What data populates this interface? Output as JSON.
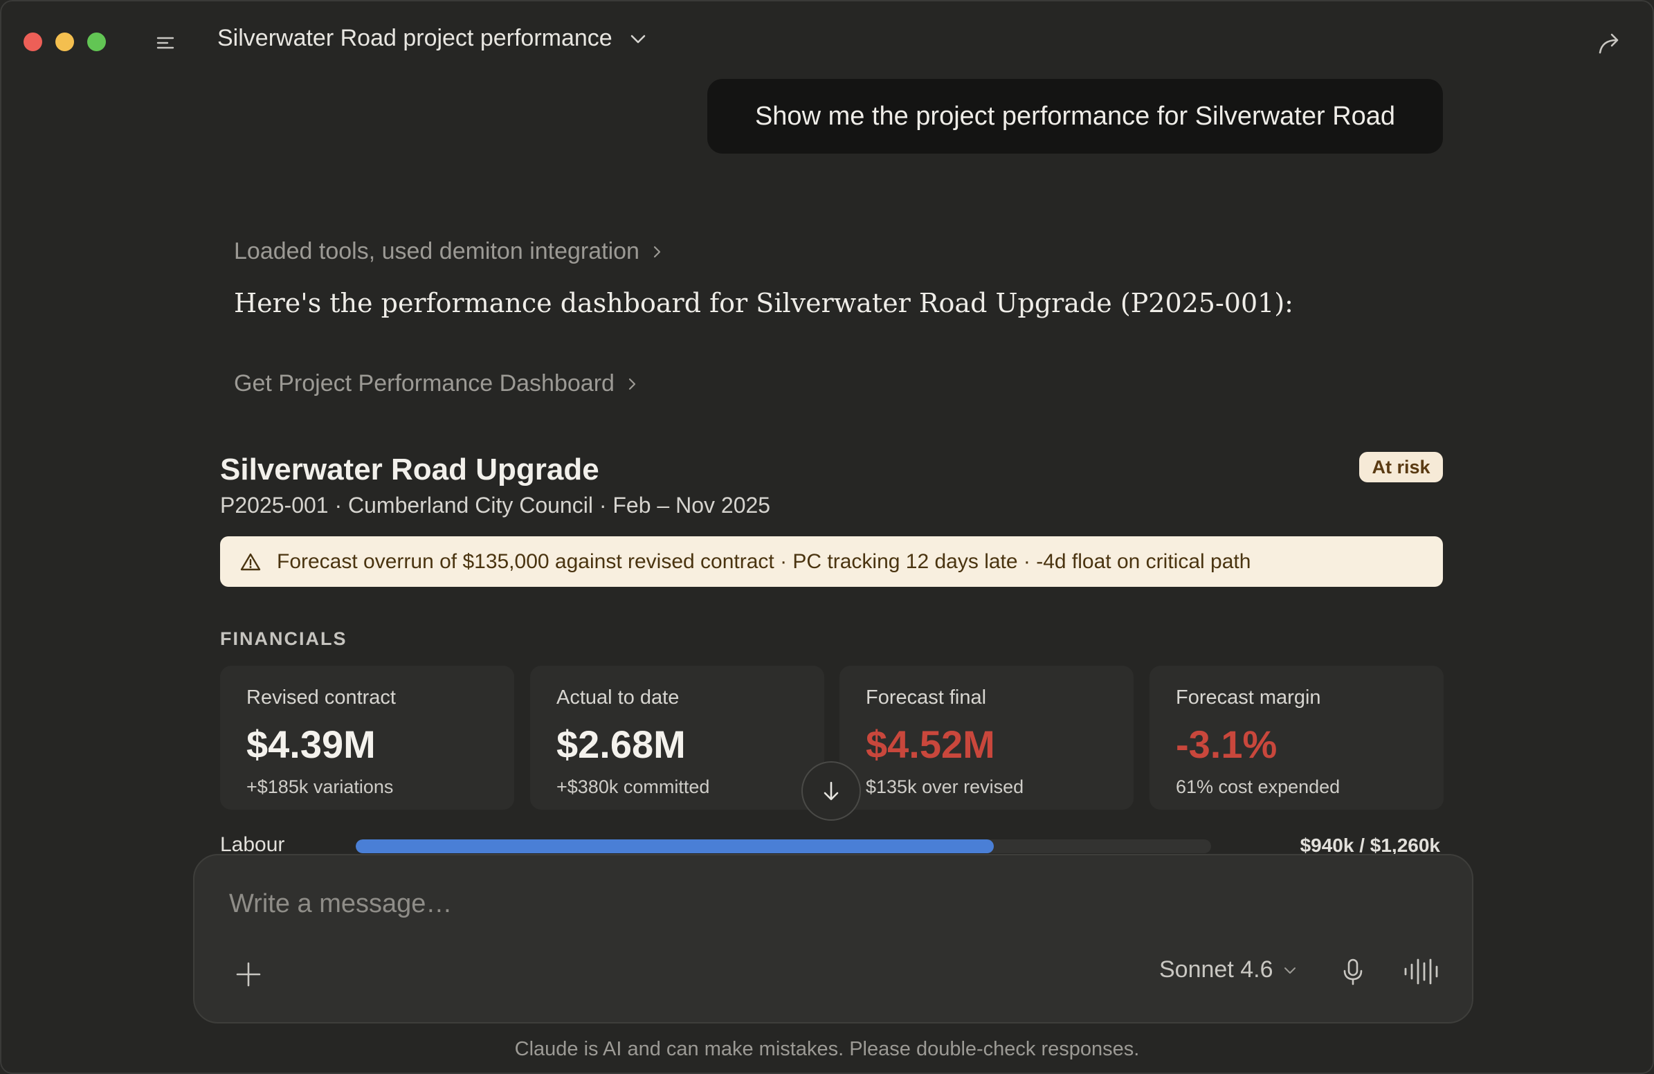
{
  "window": {
    "title": "Silverwater Road project performance"
  },
  "user_message": "Show me the project performance for Silverwater Road",
  "assistant": {
    "tools_line": "Loaded tools, used demiton integration",
    "intro": "Here's the performance dashboard for Silverwater Road Upgrade (P2025-001):",
    "tool_call": "Get Project Performance Dashboard"
  },
  "dashboard": {
    "title": "Silverwater Road Upgrade",
    "subtitle": "P2025-001 · Cumberland City Council · Feb – Nov 2025",
    "status": "At risk",
    "alert": "Forecast overrun of $135,000 against revised contract · PC tracking 12 days late · -4d float on critical path",
    "section": "FINANCIALS",
    "kpis": [
      {
        "label": "Revised contract",
        "value": "$4.39M",
        "note": "+$185k variations"
      },
      {
        "label": "Actual to date",
        "value": "$2.68M",
        "note": "+$380k committed"
      },
      {
        "label": "Forecast final",
        "value": "$4.52M",
        "note": "$135k over revised"
      },
      {
        "label": "Forecast margin",
        "value": "-3.1%",
        "note": "61% cost expended"
      }
    ],
    "cost_rows": [
      {
        "label": "Labour",
        "value": "$940k / $1,260k",
        "fraction": 0.746
      }
    ]
  },
  "composer": {
    "placeholder": "Write a message…",
    "model": "Sonnet 4.6"
  },
  "disclaimer": "Claude is AI and can make mistakes. Please double-check responses.",
  "colors": {
    "negative": "#c9473c",
    "progress": "#4a7fd6",
    "badge_bg": "#f6ead7",
    "alert_bg": "#f8efdf"
  },
  "icons": [
    "sidebar-toggle-icon",
    "chevron-down-icon",
    "share-icon",
    "chevron-right-icon",
    "warning-icon",
    "arrow-down-icon",
    "plus-icon",
    "microphone-icon",
    "voice-mode-icon"
  ]
}
